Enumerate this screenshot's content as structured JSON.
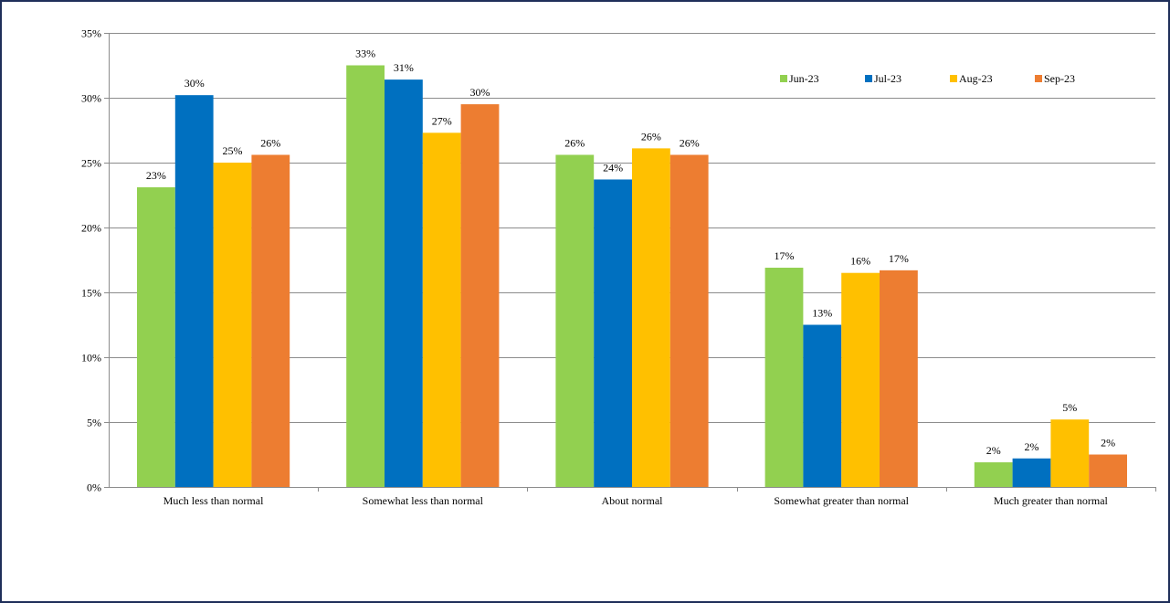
{
  "chart_data": {
    "type": "bar",
    "title": "",
    "xlabel": "",
    "ylabel": "",
    "ylim": [
      0,
      35
    ],
    "ytick_step": 5,
    "ytick_format": "percent",
    "grid": true,
    "legend_position": "top-right",
    "categories": [
      "Much less than normal",
      "Somewhat less than normal",
      "About normal",
      "Somewhat greater than normal",
      "Much greater than normal"
    ],
    "series": [
      {
        "name": "Jun-23",
        "color": "#92d050",
        "values": [
          23.1,
          32.5,
          25.6,
          16.9,
          1.9
        ],
        "labels": [
          "23%",
          "33%",
          "26%",
          "17%",
          "2%"
        ]
      },
      {
        "name": "Jul-23",
        "color": "#0070c0",
        "values": [
          30.2,
          31.4,
          23.7,
          12.5,
          2.2
        ],
        "labels": [
          "30%",
          "31%",
          "24%",
          "13%",
          "2%"
        ]
      },
      {
        "name": "Aug-23",
        "color": "#ffc000",
        "values": [
          25.0,
          27.3,
          26.1,
          16.5,
          5.2
        ],
        "labels": [
          "25%",
          "27%",
          "26%",
          "16%",
          "5%"
        ]
      },
      {
        "name": "Sep-23",
        "color": "#ed7d31",
        "values": [
          25.6,
          29.5,
          25.6,
          16.7,
          2.5
        ],
        "labels": [
          "26%",
          "30%",
          "26%",
          "17%",
          "2%"
        ]
      }
    ]
  }
}
